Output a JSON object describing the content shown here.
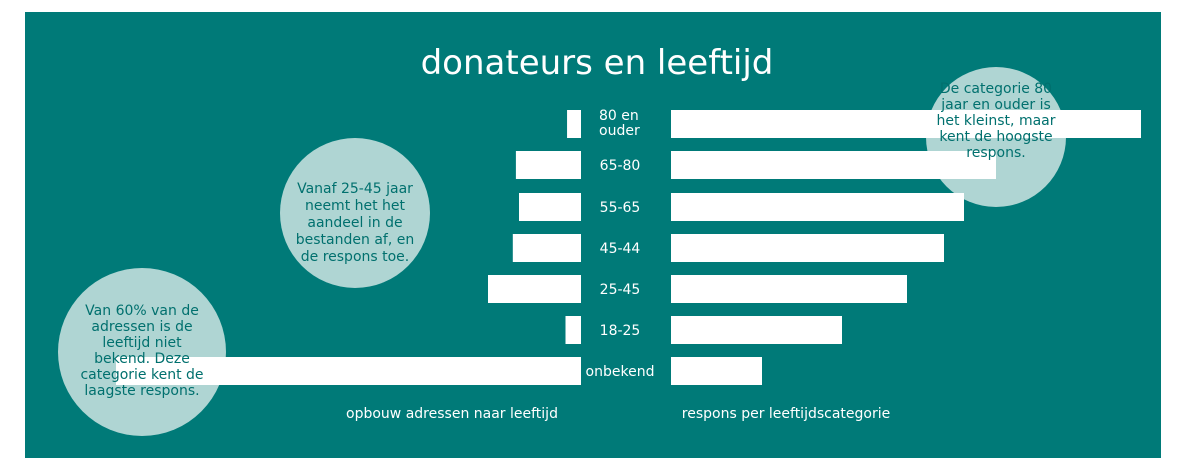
{
  "chart_data": {
    "type": "bar",
    "title": "donateurs en leeftijd",
    "categories": [
      [
        "80 en",
        "ouder"
      ],
      [
        "65-80"
      ],
      [
        "55-65"
      ],
      [
        "45-44"
      ],
      [
        "25-45"
      ],
      [
        "18-25"
      ],
      [
        "onbekend"
      ]
    ],
    "series": [
      {
        "label": "opbouw adressen naar leeftijd",
        "values": [
          0.45,
          2.1,
          2.0,
          2.2,
          3.0,
          0.5,
          15.0
        ]
      },
      {
        "label": "respons per leeftijdscategorie",
        "values": [
          4.7,
          3.25,
          2.93,
          2.73,
          2.36,
          1.71,
          0.91
        ]
      }
    ],
    "annotations": [
      {
        "lines": [
          "De categorie 80",
          "jaar en ouder is",
          "het kleinst, maar",
          "kent de hoogste",
          "respons."
        ]
      },
      {
        "lines": [
          "Vanaf 25-45 jaar",
          "neemt het het",
          "aandeel in de",
          "bestanden af, en",
          "de respons toe."
        ]
      },
      {
        "lines": [
          "Van 60% van de",
          "adressen is de",
          "leeftijd niet",
          "bekend. Deze",
          "categorie kent de",
          "laagste respons."
        ]
      }
    ],
    "colors": {
      "background": "#007a78",
      "bars": "#ffffff",
      "bubble": "#afd5d3",
      "bubble_text": "#00706e"
    }
  }
}
